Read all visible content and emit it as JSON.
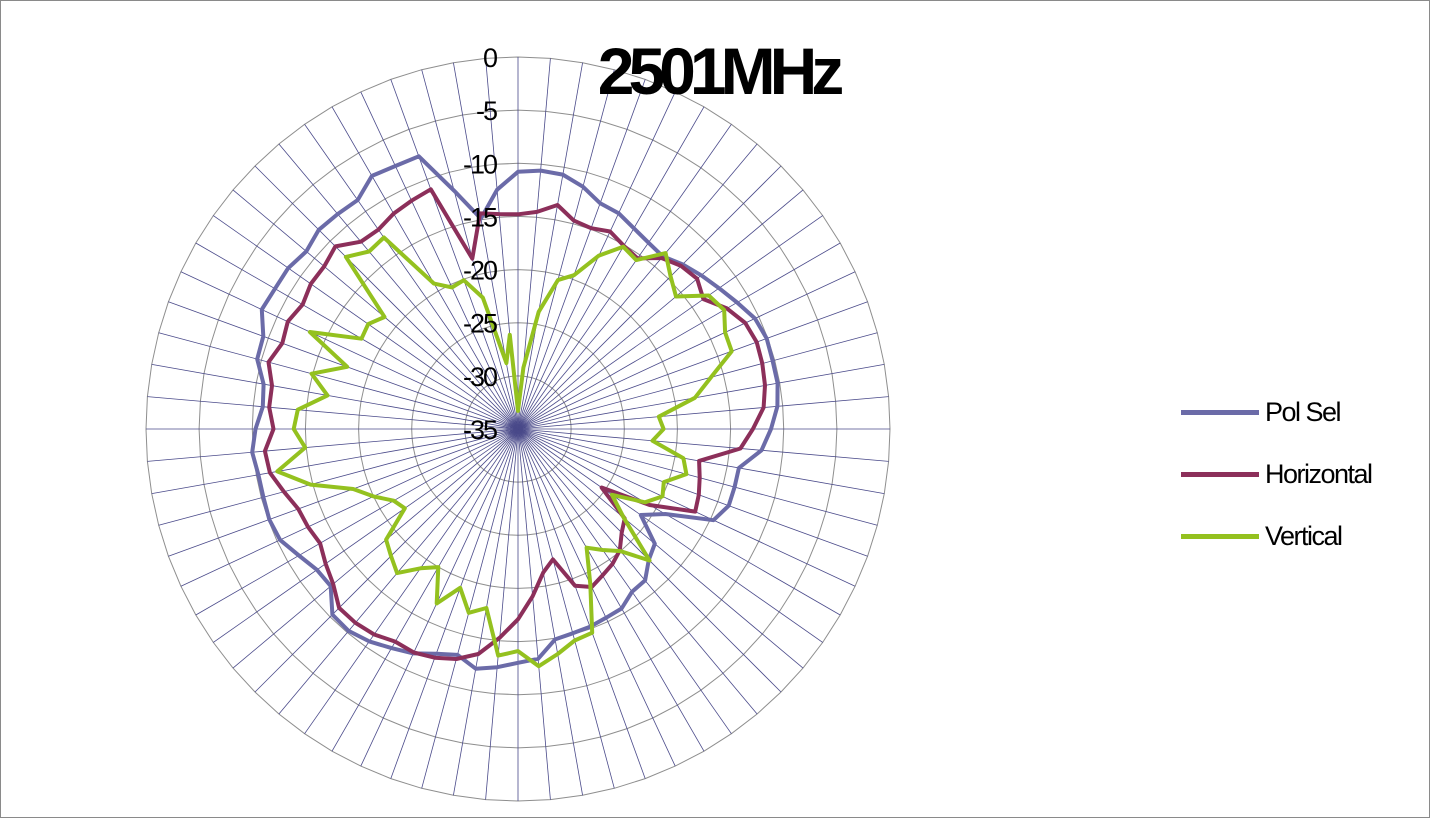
{
  "chart_data": {
    "type": "radar",
    "title": "2501MHz",
    "r_axis": {
      "min": -35,
      "max": 0,
      "ticks": [
        0,
        -5,
        -10,
        -15,
        -20,
        -25,
        -30,
        -35
      ]
    },
    "angular_steps": 72,
    "grid": true,
    "legend_position": "right",
    "series": [
      {
        "name": "Pol Sel",
        "color": "#6b6ba8",
        "values": [
          -10.8,
          -10.6,
          -10.7,
          -11.4,
          -12.4,
          -12.6,
          -13.2,
          -13.6,
          -13.8,
          -13.1,
          -12.5,
          -11.9,
          -11.2,
          -10.4,
          -10.1,
          -10.2,
          -10.2,
          -10.5,
          -11.2,
          -12.0,
          -13.9,
          -13.9,
          -13.9,
          -14.7,
          -19.0,
          -20.9,
          -18.2,
          -17.6,
          -16.4,
          -16.3,
          -15.5,
          -15.4,
          -15.2,
          -15.1,
          -14.9,
          -13.3,
          -13.0,
          -12.5,
          -12.1,
          -13.0,
          -12.5,
          -11.7,
          -11.2,
          -10.6,
          -10.2,
          -10.3,
          -12.0,
          -11.9,
          -11.2,
          -10.3,
          -10.1,
          -10.2,
          -10.2,
          -9.9,
          -10.3,
          -10.9,
          -10.7,
          -9.6,
          -9.5,
          -8.4,
          -8.6,
          -8.6,
          -9.0,
          -8.5,
          -8.6,
          -8.7,
          -7.5,
          -7.7,
          -7.7,
          -11.8,
          -14.9,
          -12.4
        ]
      },
      {
        "name": "Horizontal",
        "color": "#8c2f5a",
        "values": [
          -14.8,
          -14.5,
          -13.6,
          -14.7,
          -14.9,
          -14.5,
          -15.1,
          -15.4,
          -14.0,
          -13.3,
          -13.0,
          -13.7,
          -12.3,
          -11.4,
          -11.1,
          -11.2,
          -11.4,
          -11.8,
          -12.9,
          -14.0,
          -17.7,
          -17.3,
          -16.9,
          -16.6,
          -20.7,
          -25.4,
          -21.9,
          -21.2,
          -20.1,
          -19.5,
          -19.1,
          -18.6,
          -19.3,
          -22.3,
          -21.3,
          -19.2,
          -17.1,
          -15.3,
          -13.5,
          -12.6,
          -12.1,
          -11.8,
          -11.9,
          -11.4,
          -11.2,
          -11.2,
          -12.3,
          -12.9,
          -13.5,
          -13.2,
          -13.0,
          -12.2,
          -11.3,
          -11.1,
          -12.0,
          -11.5,
          -11.5,
          -10.7,
          -11.4,
          -11.1,
          -11.6,
          -11.2,
          -11.2,
          -10.7,
          -12.0,
          -12.1,
          -11.6,
          -11.3,
          -11.0,
          -18.4,
          -14.4,
          -14.7
        ]
      },
      {
        "name": "Vertical",
        "color": "#94c11f",
        "values": [
          -33.3,
          -29.2,
          -23.8,
          -20.5,
          -19.6,
          -17.0,
          -15.2,
          -15.6,
          -13.4,
          -14.7,
          -15.6,
          -13.1,
          -12.6,
          -13.5,
          -13.6,
          -16.2,
          -18.1,
          -21.7,
          -21.3,
          -22.3,
          -19.2,
          -18.6,
          -20.4,
          -20.0,
          -21.2,
          -24.2,
          -22.0,
          -17.5,
          -20.0,
          -21.1,
          -22.1,
          -18.9,
          -14.6,
          -14.4,
          -13.5,
          -12.6,
          -14.1,
          -13.6,
          -17.9,
          -17.1,
          -19.1,
          -16.9,
          -20.0,
          -19.0,
          -17.3,
          -18.1,
          -18.8,
          -22.0,
          -21.5,
          -20.0,
          -18.5,
          -14.8,
          -12.0,
          -14.9,
          -13.9,
          -14.2,
          -16.8,
          -14.9,
          -17.9,
          -13.4,
          -18.0,
          -17.8,
          -18.6,
          -12.1,
          -13.2,
          -13.0,
          -19.2,
          -20.3,
          -20.1,
          -22.2,
          -28.7,
          -26.1
        ]
      }
    ]
  }
}
